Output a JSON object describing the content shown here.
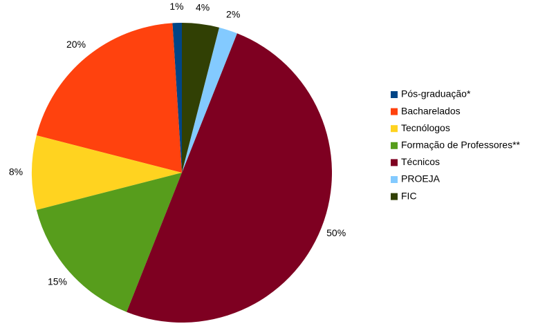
{
  "chart_data": {
    "type": "pie",
    "categories": [
      "Pós-graduação*",
      "Bacharelados",
      "Tecnólogos",
      "Formação de Professores**",
      "Técnicos",
      "PROEJA",
      "FIC"
    ],
    "values": [
      1,
      20,
      8,
      15,
      50,
      2,
      4
    ],
    "value_labels": [
      "1%",
      "20%",
      "8%",
      "15%",
      "50%",
      "2%",
      "4%"
    ],
    "colors": [
      "#004586",
      "#ff420e",
      "#ffd320",
      "#579d1c",
      "#7e0021",
      "#83caff",
      "#314004"
    ],
    "legend": "right"
  }
}
